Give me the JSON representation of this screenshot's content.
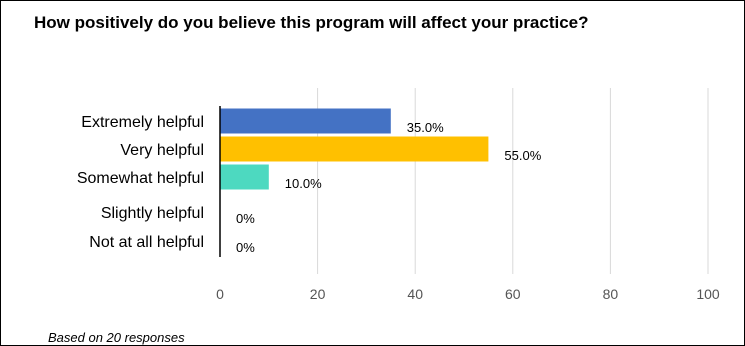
{
  "chart_data": {
    "type": "bar",
    "orientation": "horizontal",
    "title": "How positively do you believe this program will affect your practice?",
    "categories": [
      "Extremely helpful",
      "Very helpful",
      "Somewhat helpful",
      "Slightly helpful",
      "Not at all helpful"
    ],
    "values": [
      35.0,
      55.0,
      10.0,
      0,
      0
    ],
    "data_labels": [
      "35.0%",
      "55.0%",
      "10.0%",
      "0%",
      "0%"
    ],
    "bar_colors": [
      "#4472c4",
      "#ffc000",
      "#4dd9c0",
      "#4472c4",
      "#4472c4"
    ],
    "xlim": [
      0,
      100
    ],
    "xticks": [
      0,
      20,
      40,
      60,
      80,
      100
    ],
    "xlabel": "",
    "ylabel": "",
    "grid": true,
    "legend": "none"
  },
  "footnote": "Based on 20 responses"
}
